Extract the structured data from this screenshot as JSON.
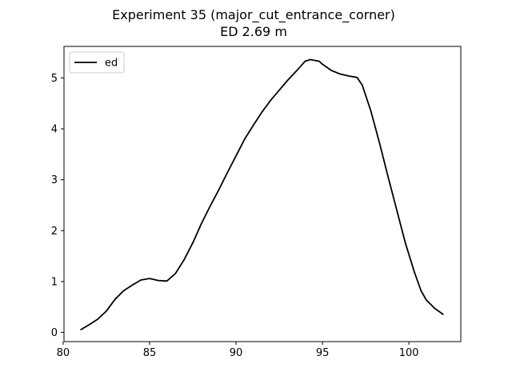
{
  "chart_data": {
    "type": "line",
    "title": "Experiment 35 (major_cut_entrance_corner)",
    "subtitle": "ED 2.69 m",
    "xlabel": "",
    "ylabel": "",
    "xlim": [
      80.05,
      103
    ],
    "ylim": [
      -0.18,
      5.62
    ],
    "xticks": [
      80,
      85,
      90,
      95,
      100
    ],
    "yticks": [
      0,
      1,
      2,
      3,
      4,
      5
    ],
    "grid": false,
    "legend_position": "top-left",
    "series": [
      {
        "name": "ed",
        "color": "#000000",
        "points": [
          [
            81.0,
            0.05
          ],
          [
            81.5,
            0.15
          ],
          [
            82.0,
            0.26
          ],
          [
            82.5,
            0.42
          ],
          [
            83.0,
            0.65
          ],
          [
            83.5,
            0.82
          ],
          [
            84.0,
            0.93
          ],
          [
            84.5,
            1.03
          ],
          [
            85.0,
            1.06
          ],
          [
            85.5,
            1.02
          ],
          [
            86.0,
            1.01
          ],
          [
            86.5,
            1.16
          ],
          [
            87.0,
            1.43
          ],
          [
            87.5,
            1.76
          ],
          [
            88.0,
            2.14
          ],
          [
            88.5,
            2.48
          ],
          [
            89.0,
            2.8
          ],
          [
            89.5,
            3.14
          ],
          [
            90.0,
            3.47
          ],
          [
            90.5,
            3.8
          ],
          [
            91.0,
            4.07
          ],
          [
            91.5,
            4.33
          ],
          [
            92.0,
            4.56
          ],
          [
            92.5,
            4.76
          ],
          [
            93.0,
            4.96
          ],
          [
            93.5,
            5.14
          ],
          [
            94.0,
            5.33
          ],
          [
            94.3,
            5.36
          ],
          [
            94.8,
            5.33
          ],
          [
            95.0,
            5.27
          ],
          [
            95.5,
            5.15
          ],
          [
            96.0,
            5.08
          ],
          [
            96.5,
            5.04
          ],
          [
            97.0,
            5.01
          ],
          [
            97.3,
            4.86
          ],
          [
            97.8,
            4.35
          ],
          [
            98.3,
            3.72
          ],
          [
            98.8,
            3.05
          ],
          [
            99.3,
            2.4
          ],
          [
            99.8,
            1.75
          ],
          [
            100.3,
            1.2
          ],
          [
            100.7,
            0.82
          ],
          [
            101.0,
            0.64
          ],
          [
            101.5,
            0.47
          ],
          [
            102.0,
            0.35
          ]
        ]
      }
    ]
  }
}
